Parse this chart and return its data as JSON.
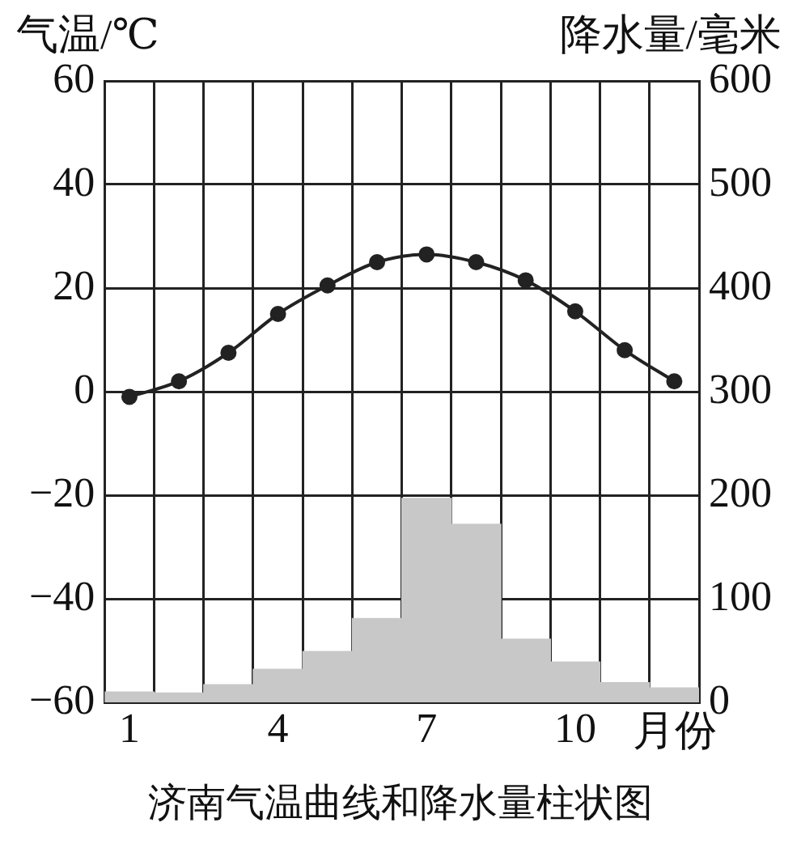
{
  "chart_data": {
    "type": "bar",
    "title": "济南气温曲线和降水量柱状图",
    "xlabel": "月份",
    "ylabel": "气温/℃",
    "y2label": "降水量/毫米",
    "categories": [
      "1",
      null,
      null,
      "4",
      null,
      null,
      "7",
      null,
      null,
      "10",
      null,
      null
    ],
    "series": [
      {
        "axis": "y2",
        "color": "#c8c8c8",
        "values": [
          10,
          9,
          17,
          32,
          49,
          81,
          197,
          172,
          61,
          39,
          19,
          14
        ]
      },
      {
        "type": "line",
        "color": "#222222",
        "marker": "circle",
        "line_style": "solid",
        "values": [
          -1,
          2,
          7.5,
          15,
          20.5,
          25,
          26.5,
          25,
          21.5,
          15.5,
          8,
          2
        ]
      }
    ],
    "ylim": [
      -60,
      60
    ],
    "yticks": [
      -60,
      -40,
      -20,
      0,
      20,
      40,
      60
    ],
    "y2lim": [
      0,
      600
    ],
    "y2ticks": [
      0,
      100,
      200,
      300,
      400,
      500,
      600
    ],
    "grid": true,
    "legend": false
  }
}
